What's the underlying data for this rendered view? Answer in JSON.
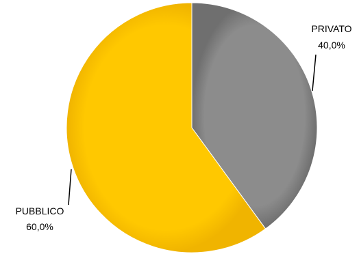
{
  "chart_data": {
    "type": "pie",
    "title": "",
    "slices": [
      {
        "label": "PRIVATO",
        "value": 40.0,
        "value_label": "40,0%",
        "color": "#8a8a8a",
        "label_position": "top-right"
      },
      {
        "label": "PUBBLICO",
        "value": 60.0,
        "value_label": "60,0%",
        "color": "#ffc800",
        "label_position": "bottom-left"
      }
    ],
    "start_angle": "12 o'clock",
    "direction": "clockwise",
    "legend": "none",
    "data_labels": "outside with leader lines"
  }
}
